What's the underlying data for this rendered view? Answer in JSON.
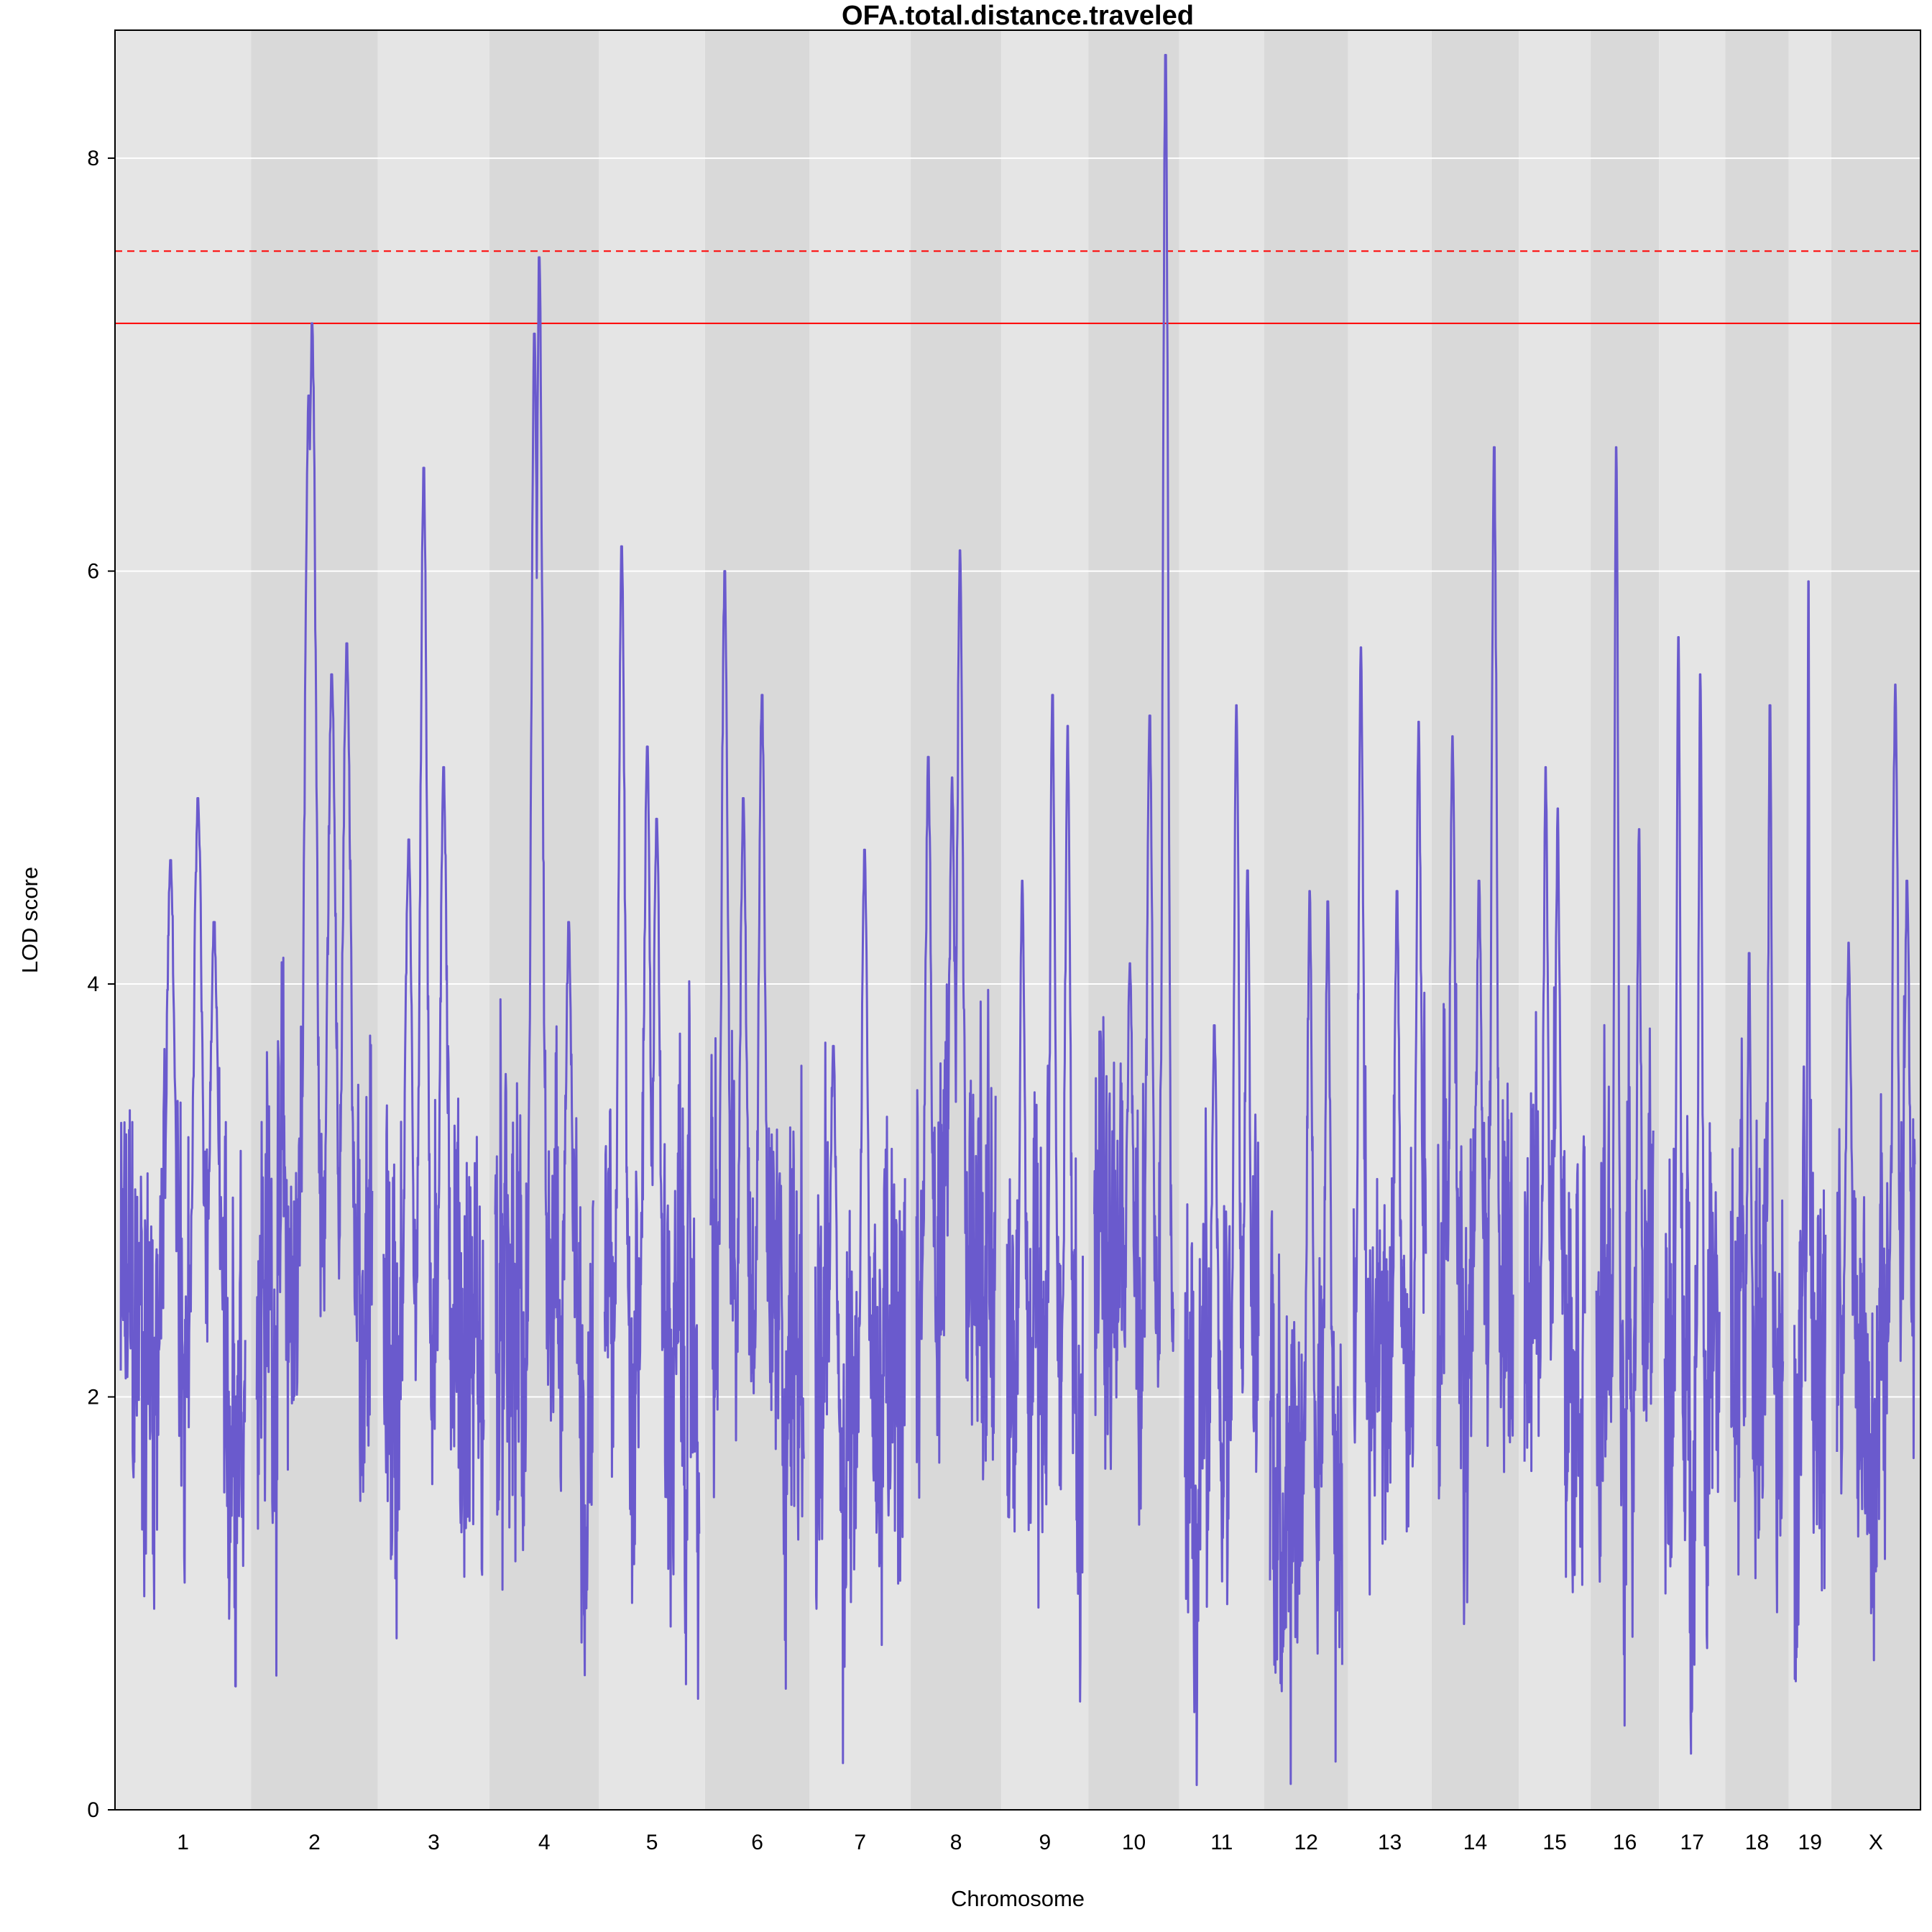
{
  "chart_data": {
    "type": "line",
    "title": "OFA.total.distance.traveled",
    "xlabel": "Chromosome",
    "ylabel": "LOD score",
    "ylim": [
      0,
      8.62
    ],
    "yticks": [
      0,
      2,
      4,
      6,
      8
    ],
    "grid": true,
    "legend": "none",
    "colors": {
      "line": "#6a5acd",
      "band_light": "#e5e5e5",
      "band_dark": "#d9d9d9",
      "gridline": "#ffffff",
      "threshold": "#ff0000"
    },
    "thresholds": [
      {
        "value": 7.55,
        "style": "dashed"
      },
      {
        "value": 7.2,
        "style": "solid"
      }
    ],
    "chromosomes": [
      {
        "label": "1",
        "rel_length": 195,
        "base": 2.3,
        "peaks": [
          [
            0.62,
            4.9
          ],
          [
            0.4,
            4.6
          ],
          [
            0.75,
            4.3
          ]
        ]
      },
      {
        "label": "2",
        "rel_length": 182,
        "base": 2.6,
        "peaks": [
          [
            0.48,
            7.2
          ],
          [
            0.45,
            6.85
          ],
          [
            0.78,
            5.65
          ],
          [
            0.65,
            5.5
          ]
        ]
      },
      {
        "label": "3",
        "rel_length": 160,
        "base": 2.2,
        "peaks": [
          [
            0.4,
            6.5
          ],
          [
            0.25,
            4.7
          ],
          [
            0.6,
            5.05
          ]
        ]
      },
      {
        "label": "4",
        "rel_length": 157,
        "base": 2.2,
        "peaks": [
          [
            0.45,
            7.52
          ],
          [
            0.4,
            7.15
          ],
          [
            0.75,
            4.3
          ]
        ]
      },
      {
        "label": "5",
        "rel_length": 152,
        "base": 2.2,
        "peaks": [
          [
            0.18,
            6.12
          ],
          [
            0.45,
            5.15
          ],
          [
            0.55,
            4.8
          ]
        ]
      },
      {
        "label": "6",
        "rel_length": 150,
        "base": 2.3,
        "peaks": [
          [
            0.15,
            6.0
          ],
          [
            0.55,
            5.4
          ],
          [
            0.35,
            4.9
          ]
        ]
      },
      {
        "label": "7",
        "rel_length": 145,
        "base": 2.0,
        "peaks": [
          [
            0.55,
            4.65
          ],
          [
            0.2,
            3.7
          ]
        ]
      },
      {
        "label": "8",
        "rel_length": 130,
        "base": 2.8,
        "peaks": [
          [
            0.55,
            6.1
          ],
          [
            0.15,
            5.1
          ],
          [
            0.45,
            5.0
          ]
        ]
      },
      {
        "label": "9",
        "rel_length": 125,
        "base": 2.0,
        "peaks": [
          [
            0.6,
            5.4
          ],
          [
            0.8,
            5.25
          ],
          [
            0.2,
            4.5
          ]
        ]
      },
      {
        "label": "10",
        "rel_length": 130,
        "base": 2.4,
        "peaks": [
          [
            0.9,
            8.5
          ],
          [
            0.7,
            5.3
          ],
          [
            0.45,
            4.1
          ]
        ]
      },
      {
        "label": "11",
        "rel_length": 122,
        "base": 2.0,
        "peaks": [
          [
            0.7,
            5.35
          ],
          [
            0.4,
            3.8
          ],
          [
            0.85,
            4.55
          ]
        ]
      },
      {
        "label": "12",
        "rel_length": 120,
        "base": 1.9,
        "peaks": [
          [
            0.55,
            4.45
          ],
          [
            0.8,
            4.4
          ]
        ]
      },
      {
        "label": "13",
        "rel_length": 120,
        "base": 2.2,
        "peaks": [
          [
            0.1,
            5.63
          ],
          [
            0.6,
            4.45
          ],
          [
            0.9,
            5.27
          ]
        ]
      },
      {
        "label": "14",
        "rel_length": 125,
        "base": 2.4,
        "peaks": [
          [
            0.2,
            5.2
          ],
          [
            0.75,
            6.6
          ],
          [
            0.55,
            4.5
          ]
        ]
      },
      {
        "label": "15",
        "rel_length": 103,
        "base": 2.6,
        "peaks": [
          [
            0.35,
            5.05
          ],
          [
            0.55,
            4.85
          ]
        ]
      },
      {
        "label": "16",
        "rel_length": 98,
        "base": 2.2,
        "peaks": [
          [
            0.35,
            6.6
          ],
          [
            0.75,
            4.75
          ]
        ]
      },
      {
        "label": "17",
        "rel_length": 95,
        "base": 2.0,
        "peaks": [
          [
            0.25,
            5.68
          ],
          [
            0.65,
            5.5
          ]
        ]
      },
      {
        "label": "18",
        "rel_length": 91,
        "base": 2.2,
        "peaks": [
          [
            0.75,
            5.35
          ],
          [
            0.35,
            4.15
          ]
        ]
      },
      {
        "label": "19",
        "rel_length": 61,
        "base": 1.8,
        "peaks": [
          [
            0.45,
            5.95
          ],
          [
            0.3,
            3.6
          ]
        ]
      },
      {
        "label": "X",
        "rel_length": 128,
        "base": 2.3,
        "peaks": [
          [
            0.75,
            5.45
          ],
          [
            0.9,
            4.5
          ],
          [
            0.15,
            4.2
          ]
        ]
      }
    ]
  }
}
